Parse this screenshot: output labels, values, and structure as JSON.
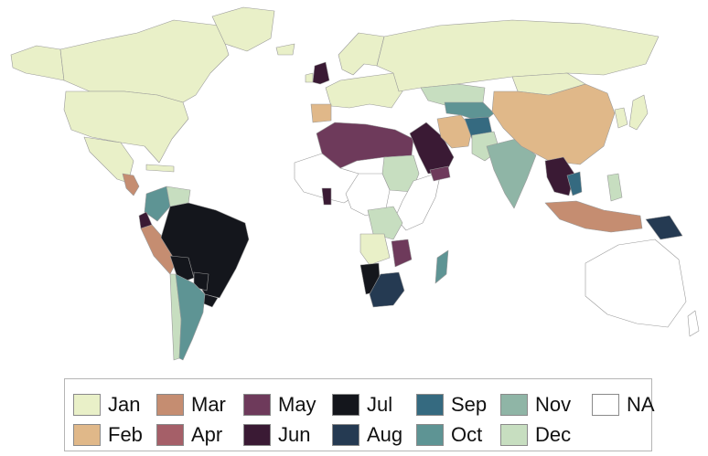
{
  "colors": {
    "Jan": "#e9f0c8",
    "Feb": "#e0b889",
    "Mar": "#c58d71",
    "Apr": "#a55f68",
    "May": "#6e3a5b",
    "Jun": "#3a1a34",
    "Jul": "#14161c",
    "Aug": "#253a52",
    "Sep": "#356a80",
    "Oct": "#5e9494",
    "Nov": "#8fb5a6",
    "Dec": "#c7dec0",
    "NA": "#ffffff"
  },
  "legend": {
    "items": [
      {
        "key": "Jan",
        "label": "Jan"
      },
      {
        "key": "Feb",
        "label": "Feb"
      },
      {
        "key": "Mar",
        "label": "Mar"
      },
      {
        "key": "Apr",
        "label": "Apr"
      },
      {
        "key": "May",
        "label": "May"
      },
      {
        "key": "Jun",
        "label": "Jun"
      },
      {
        "key": "Jul",
        "label": "Jul"
      },
      {
        "key": "Aug",
        "label": "Aug"
      },
      {
        "key": "Sep",
        "label": "Sep"
      },
      {
        "key": "Oct",
        "label": "Oct"
      },
      {
        "key": "Nov",
        "label": "Nov"
      },
      {
        "key": "Dec",
        "label": "Dec"
      },
      {
        "key": "NA",
        "label": "NA"
      }
    ]
  },
  "regions": [
    {
      "name": "canada",
      "month": "Jan"
    },
    {
      "name": "usa",
      "month": "Jan"
    },
    {
      "name": "alaska",
      "month": "Jan"
    },
    {
      "name": "greenland",
      "month": "Jan"
    },
    {
      "name": "mexico",
      "month": "Jan"
    },
    {
      "name": "central-america",
      "month": "Mar"
    },
    {
      "name": "caribbean",
      "month": "Jan"
    },
    {
      "name": "colombia",
      "month": "Oct"
    },
    {
      "name": "venezuela",
      "month": "Dec"
    },
    {
      "name": "ecuador",
      "month": "Jun"
    },
    {
      "name": "peru",
      "month": "Mar"
    },
    {
      "name": "brazil",
      "month": "Jul"
    },
    {
      "name": "bolivia",
      "month": "Jul"
    },
    {
      "name": "paraguay",
      "month": "Jul"
    },
    {
      "name": "chile",
      "month": "Dec"
    },
    {
      "name": "argentina",
      "month": "Oct"
    },
    {
      "name": "uruguay",
      "month": "Jul"
    },
    {
      "name": "iceland",
      "month": "Jan"
    },
    {
      "name": "uk",
      "month": "Jun"
    },
    {
      "name": "ireland",
      "month": "Jan"
    },
    {
      "name": "scandinavia",
      "month": "Jan"
    },
    {
      "name": "europe",
      "month": "Jan"
    },
    {
      "name": "iberia",
      "month": "Feb"
    },
    {
      "name": "russia",
      "month": "Jan"
    },
    {
      "name": "kazakhstan",
      "month": "Dec"
    },
    {
      "name": "north-africa",
      "month": "May"
    },
    {
      "name": "west-africa",
      "month": "NA"
    },
    {
      "name": "ghana",
      "month": "Jun"
    },
    {
      "name": "sudan-chad",
      "month": "Dec"
    },
    {
      "name": "central-africa",
      "month": "NA"
    },
    {
      "name": "congo",
      "month": "Dec"
    },
    {
      "name": "angola",
      "month": "Jan"
    },
    {
      "name": "namibia",
      "month": "Jul"
    },
    {
      "name": "south-africa",
      "month": "Aug"
    },
    {
      "name": "east-africa",
      "month": "NA"
    },
    {
      "name": "mozambique",
      "month": "May"
    },
    {
      "name": "madagascar",
      "month": "Oct"
    },
    {
      "name": "saudi-arabia",
      "month": "Jun"
    },
    {
      "name": "yemen",
      "month": "May"
    },
    {
      "name": "iran",
      "month": "Feb"
    },
    {
      "name": "afghanistan",
      "month": "Sep"
    },
    {
      "name": "pakistan",
      "month": "Dec"
    },
    {
      "name": "central-asia",
      "month": "Oct"
    },
    {
      "name": "india",
      "month": "Nov"
    },
    {
      "name": "china",
      "month": "Feb"
    },
    {
      "name": "mongolia",
      "month": "Jan"
    },
    {
      "name": "japan",
      "month": "Jan"
    },
    {
      "name": "korea",
      "month": "Jan"
    },
    {
      "name": "southeast-asia",
      "month": "Jun"
    },
    {
      "name": "vietnam",
      "month": "Sep"
    },
    {
      "name": "philippines",
      "month": "Dec"
    },
    {
      "name": "indonesia",
      "month": "Mar"
    },
    {
      "name": "papua",
      "month": "Aug"
    },
    {
      "name": "australia",
      "month": "NA"
    },
    {
      "name": "new-zealand",
      "month": "NA"
    }
  ]
}
